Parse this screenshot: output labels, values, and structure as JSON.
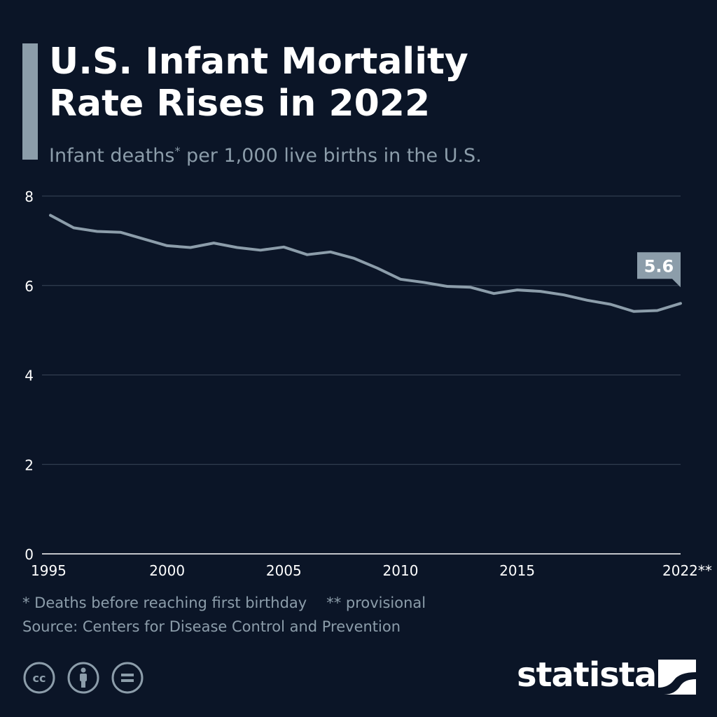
{
  "header": {
    "title_line1": "U.S. Infant Mortality",
    "title_line2": "Rate Rises in 2022",
    "subtitle_pre": "Infant deaths",
    "subtitle_sup": "*",
    "subtitle_post": " per 1,000 live births in the U.S."
  },
  "footnotes": {
    "note1": "* Deaths before reaching first birthday",
    "note2": "** provisional",
    "source": "Source: Centers for Disease Control and Prevention"
  },
  "brand": {
    "name": "statista"
  },
  "icons": [
    "cc-icon",
    "attribution-icon",
    "no-derivatives-icon",
    "statista-logo-icon"
  ],
  "colors": {
    "background": "#0b1527",
    "line": "#8c9daa",
    "text": "#ffffff",
    "muted": "#8c9daa",
    "grid": "#3a4658"
  },
  "chart_data": {
    "type": "line",
    "title": "U.S. Infant Mortality Rate Rises in 2022",
    "subtitle": "Infant deaths* per 1,000 live births in the U.S.",
    "x": [
      1995,
      1996,
      1997,
      1998,
      1999,
      2000,
      2001,
      2002,
      2003,
      2004,
      2005,
      2006,
      2007,
      2008,
      2009,
      2010,
      2011,
      2012,
      2013,
      2014,
      2015,
      2016,
      2017,
      2018,
      2019,
      2020,
      2021,
      2022
    ],
    "series": [
      {
        "values": [
          7.57,
          7.29,
          7.21,
          7.19,
          7.04,
          6.89,
          6.85,
          6.95,
          6.85,
          6.79,
          6.86,
          6.69,
          6.75,
          6.61,
          6.39,
          6.14,
          6.07,
          5.98,
          5.96,
          5.82,
          5.9,
          5.87,
          5.79,
          5.67,
          5.58,
          5.42,
          5.44,
          5.6
        ]
      }
    ],
    "x_tick_labels": [
      {
        "x": 1995,
        "label": "1995"
      },
      {
        "x": 2000,
        "label": "2000"
      },
      {
        "x": 2005,
        "label": "2005"
      },
      {
        "x": 2010,
        "label": "2010"
      },
      {
        "x": 2015,
        "label": "2015"
      },
      {
        "x": 2022,
        "label": "2022**"
      }
    ],
    "y_ticks": [
      0,
      2,
      4,
      6,
      8
    ],
    "ylim": [
      0,
      8
    ],
    "xlim": [
      1995,
      2022
    ],
    "grid": true,
    "annotation": {
      "x": 2022,
      "label": "5.6"
    }
  }
}
